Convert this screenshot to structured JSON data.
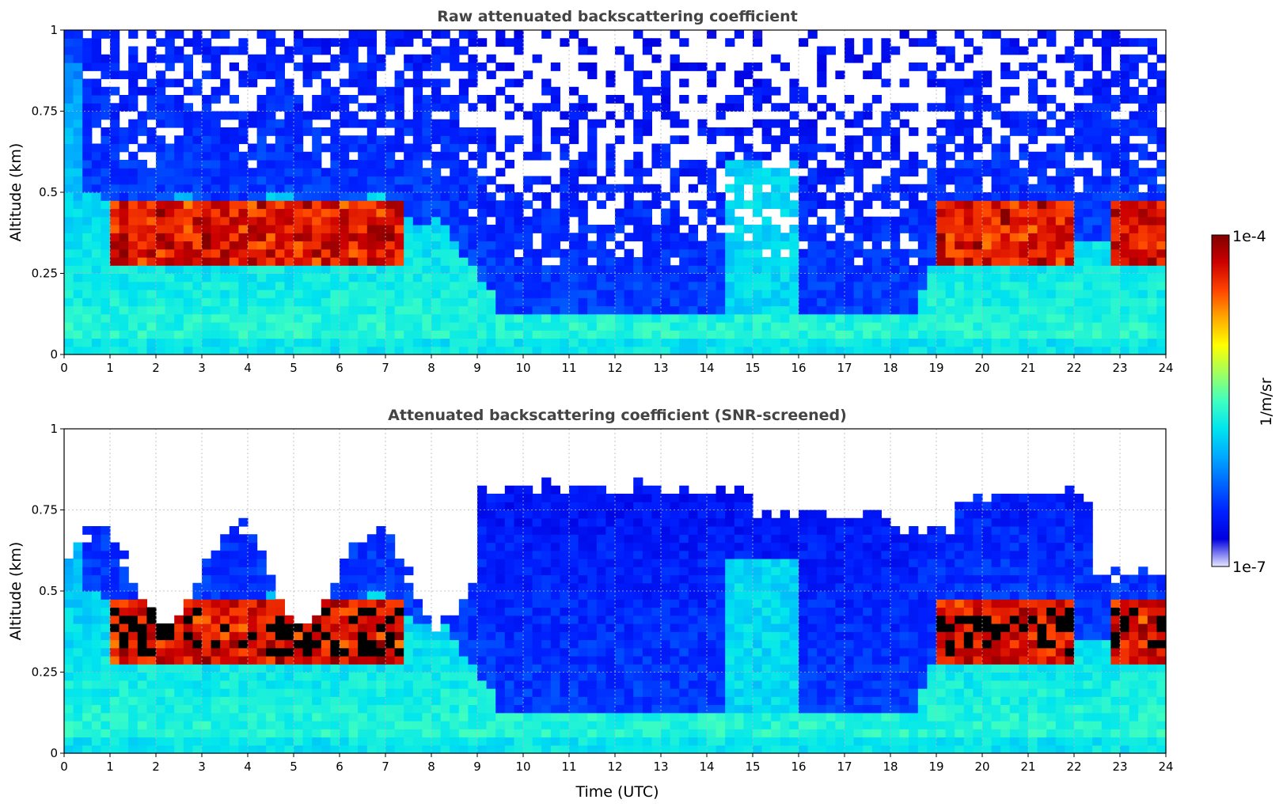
{
  "chart_data": [
    {
      "type": "heatmap",
      "title": "Raw attenuated backscattering coefficient",
      "xlabel": "",
      "ylabel": "Altitude (km)",
      "xlim": [
        0,
        24
      ],
      "ylim": [
        0,
        1
      ],
      "xticks": [
        "0",
        "1",
        "2",
        "3",
        "4",
        "5",
        "6",
        "7",
        "8",
        "9",
        "10",
        "11",
        "12",
        "13",
        "14",
        "15",
        "16",
        "17",
        "18",
        "19",
        "20",
        "21",
        "22",
        "23",
        "24"
      ],
      "yticks": [
        {
          "value": 0,
          "label": "0"
        },
        {
          "value": 0.25,
          "label": "0.25"
        },
        {
          "value": 0.5,
          "label": "0.5"
        },
        {
          "value": 0.75,
          "label": "0.75"
        },
        {
          "value": 1,
          "label": "1"
        }
      ],
      "grid": true,
      "screened": false,
      "colormap": "jet",
      "log_color_scale": true
    },
    {
      "type": "heatmap",
      "title": "Attenuated backscattering coefficient (SNR-screened)",
      "xlabel": "Time (UTC)",
      "ylabel": "Altitude (km)",
      "xlim": [
        0,
        24
      ],
      "ylim": [
        0,
        1
      ],
      "xticks": [
        "0",
        "1",
        "2",
        "3",
        "4",
        "5",
        "6",
        "7",
        "8",
        "9",
        "10",
        "11",
        "12",
        "13",
        "14",
        "15",
        "16",
        "17",
        "18",
        "19",
        "20",
        "21",
        "22",
        "23",
        "24"
      ],
      "yticks": [
        {
          "value": 0,
          "label": "0"
        },
        {
          "value": 0.25,
          "label": "0.25"
        },
        {
          "value": 0.5,
          "label": "0.5"
        },
        {
          "value": 0.75,
          "label": "0.75"
        },
        {
          "value": 1,
          "label": "1"
        }
      ],
      "grid": true,
      "screened": true,
      "colormap": "jet",
      "log_color_scale": true
    }
  ],
  "colorbar": {
    "label": "1/m/sr",
    "max_label": "1e-4",
    "min_label": "1e-7",
    "colors": [
      "#e8e8ff",
      "#0000e0",
      "#0022ff",
      "#0066ff",
      "#00aaff",
      "#00e5ee",
      "#40ffc0",
      "#a0ff60",
      "#ffff00",
      "#ffaa00",
      "#ff4400",
      "#cc0000",
      "#800000"
    ]
  }
}
